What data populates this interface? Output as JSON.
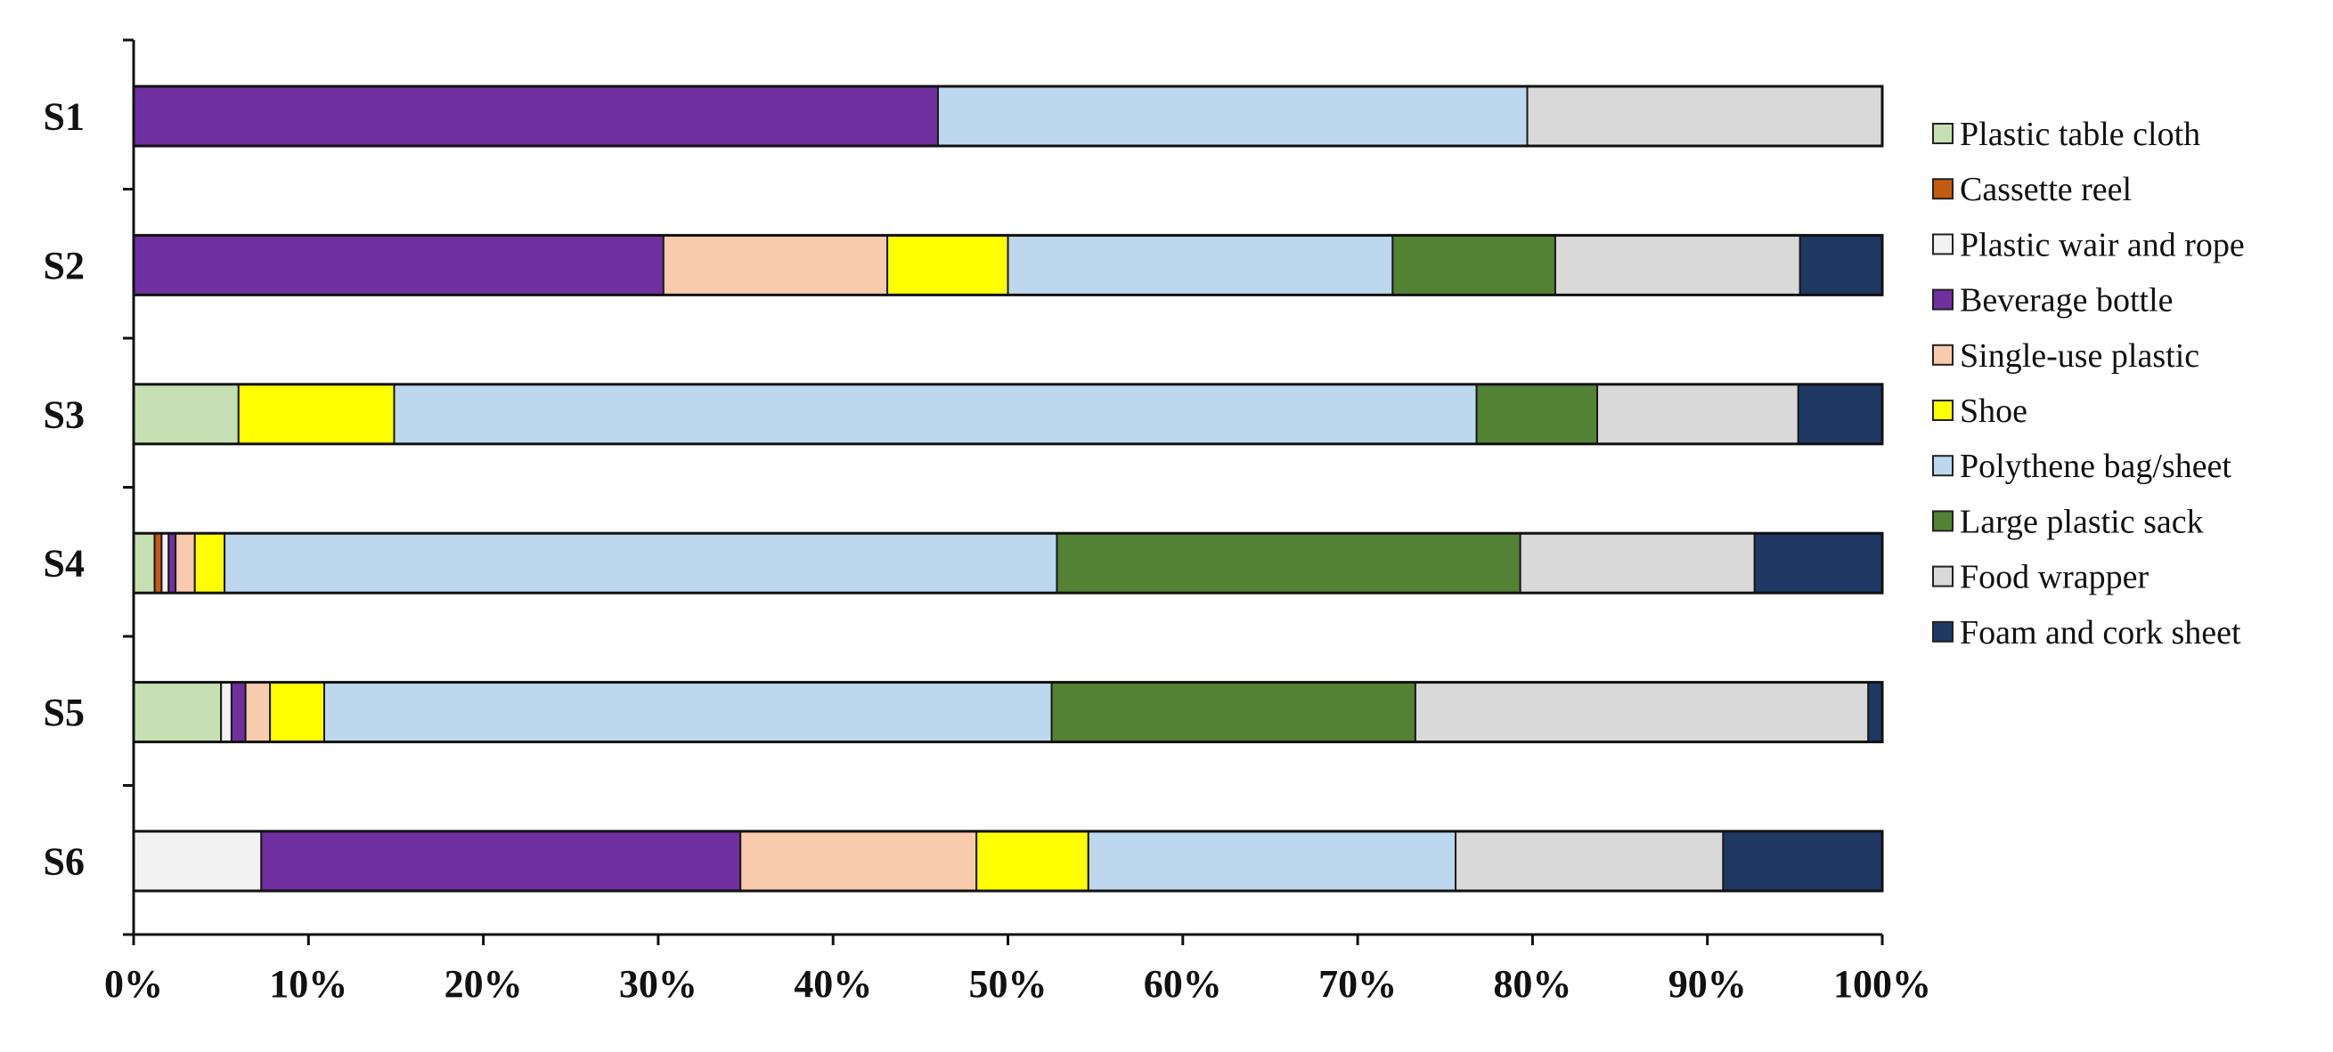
{
  "chart_data": {
    "type": "bar",
    "orientation": "horizontal",
    "stacked": "percent",
    "categories": [
      "S1",
      "S2",
      "S3",
      "S4",
      "S5",
      "S6"
    ],
    "xlim": [
      0,
      100
    ],
    "x_ticks": [
      "0%",
      "10%",
      "20%",
      "30%",
      "40%",
      "50%",
      "60%",
      "70%",
      "80%",
      "90%",
      "100%"
    ],
    "x_tick_values": [
      0,
      10,
      20,
      30,
      40,
      50,
      60,
      70,
      80,
      90,
      100
    ],
    "grid": false,
    "legend_position": "right",
    "series": [
      {
        "name": "Plastic table cloth",
        "color": "#c6e0b4",
        "values": [
          0,
          0,
          6.0,
          1.2,
          5.0,
          0
        ]
      },
      {
        "name": "Cassette reel",
        "color": "#c55a11",
        "values": [
          0,
          0,
          0,
          0.4,
          0,
          0
        ]
      },
      {
        "name": "Plastic wair and rope",
        "color": "#f2f2f2",
        "values": [
          0,
          0,
          0,
          0.4,
          0.6,
          7.3
        ]
      },
      {
        "name": "Beverage bottle",
        "color": "#7030a0",
        "values": [
          46.0,
          30.3,
          0,
          0.4,
          0.8,
          27.4
        ]
      },
      {
        "name": "Single-use plastic",
        "color": "#f8cbad",
        "values": [
          0,
          12.8,
          0,
          1.1,
          1.4,
          13.5
        ]
      },
      {
        "name": "Shoe",
        "color": "#ffff00",
        "values": [
          0,
          6.9,
          8.9,
          1.7,
          3.1,
          6.4
        ]
      },
      {
        "name": "Polythene bag/sheet",
        "color": "#bdd7ee",
        "values": [
          33.7,
          22.0,
          61.9,
          47.6,
          41.6,
          21.0
        ]
      },
      {
        "name": "Large plastic sack",
        "color": "#548235",
        "values": [
          0,
          9.3,
          6.9,
          26.5,
          20.8,
          0
        ]
      },
      {
        "name": "Food wrapper",
        "color": "#d9d9d9",
        "values": [
          20.3,
          14.0,
          11.5,
          13.4,
          25.9,
          15.3
        ]
      },
      {
        "name": "Foam and cork sheet",
        "color": "#1f3864",
        "values": [
          0,
          4.7,
          4.8,
          7.3,
          0.8,
          9.1
        ]
      }
    ]
  }
}
